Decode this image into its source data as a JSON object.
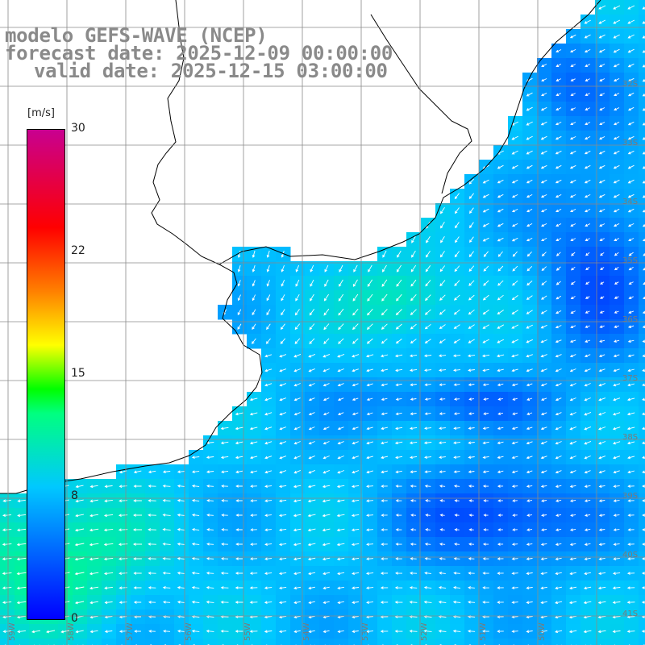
{
  "title": {
    "line1": "modelo GEFS-WAVE (NCEP)",
    "line2": "forecast date: 2025-12-09 00:00:00",
    "line3": "valid date: 2025-12-15 03:00:00"
  },
  "colorbar": {
    "unit": "[m/s]",
    "min": 0,
    "max": 30,
    "ticks": [
      "30",
      "22",
      "15",
      "8",
      "0"
    ],
    "colors": [
      "#0000ff",
      "#00c8ff",
      "#00ff80",
      "#00ff00",
      "#ffff00",
      "#ff8000",
      "#ff0000",
      "#c80090"
    ]
  },
  "grid_labels": {
    "right": [
      "32S",
      "33S",
      "34S",
      "35S",
      "36S",
      "37S",
      "38S",
      "39S",
      "40S",
      "41S"
    ],
    "bottom": [
      "59W",
      "58W",
      "57W",
      "56W",
      "55W",
      "54W",
      "53W",
      "52W",
      "51W",
      "50W"
    ]
  },
  "colors": {
    "land": "#ffffff",
    "coast": "#000000",
    "grid": "#8a8a8a",
    "arrows": "#ffffff",
    "title": "#8a8a8a"
  }
}
